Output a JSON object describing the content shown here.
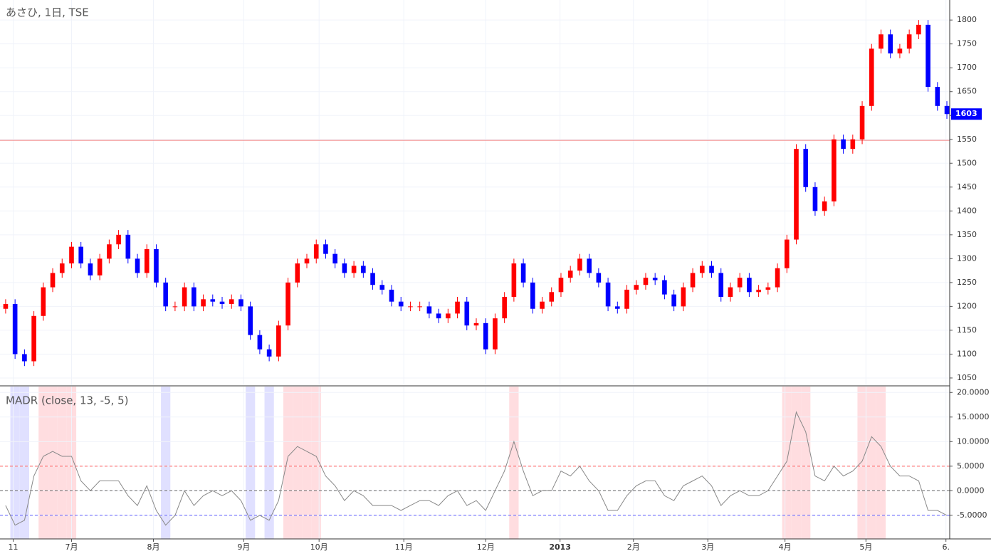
{
  "chart_data": [
    {
      "type": "candlestick",
      "title": "あさひ, 1日, TSE",
      "up_color": "#ff0000",
      "down_color": "#0000ff",
      "open": [
        1195,
        1205,
        1100,
        1085,
        1180,
        1240,
        1270,
        1290,
        1325,
        1290,
        1265,
        1300,
        1330,
        1350,
        1300,
        1270,
        1320,
        1250,
        1200,
        1200,
        1240,
        1200,
        1215,
        1210,
        1205,
        1215,
        1200,
        1140,
        1110,
        1095,
        1160,
        1250,
        1290,
        1300,
        1330,
        1310,
        1290,
        1270,
        1285,
        1270,
        1245,
        1235,
        1210,
        1200,
        1200,
        1200,
        1185,
        1175,
        1185,
        1210,
        1160,
        1165,
        1110,
        1175,
        1220,
        1290,
        1250,
        1195,
        1210,
        1230,
        1260,
        1275,
        1300,
        1270,
        1250,
        1200,
        1195,
        1235,
        1245,
        1260,
        1255,
        1225,
        1200,
        1240,
        1270,
        1285,
        1270,
        1220,
        1240,
        1260,
        1230,
        1235,
        1240,
        1280,
        1340,
        1530,
        1450,
        1400,
        1420,
        1550,
        1530,
        1550,
        1620,
        1740,
        1770,
        1730,
        1740,
        1770,
        1790,
        1660,
        1620
      ],
      "high": [
        1215,
        1215,
        1110,
        1190,
        1250,
        1280,
        1300,
        1335,
        1335,
        1300,
        1310,
        1340,
        1360,
        1360,
        1310,
        1330,
        1330,
        1260,
        1210,
        1250,
        1250,
        1225,
        1225,
        1220,
        1225,
        1225,
        1210,
        1150,
        1120,
        1170,
        1260,
        1300,
        1310,
        1340,
        1340,
        1320,
        1300,
        1295,
        1295,
        1280,
        1255,
        1245,
        1220,
        1210,
        1210,
        1210,
        1195,
        1195,
        1220,
        1220,
        1175,
        1175,
        1185,
        1230,
        1300,
        1300,
        1260,
        1220,
        1240,
        1270,
        1285,
        1310,
        1310,
        1280,
        1260,
        1210,
        1245,
        1255,
        1270,
        1270,
        1265,
        1235,
        1250,
        1280,
        1295,
        1295,
        1280,
        1250,
        1270,
        1270,
        1245,
        1250,
        1290,
        1350,
        1540,
        1540,
        1460,
        1430,
        1560,
        1560,
        1560,
        1630,
        1750,
        1780,
        1780,
        1750,
        1780,
        1800,
        1800,
        1670,
        1630
      ],
      "low": [
        1185,
        1090,
        1075,
        1075,
        1170,
        1230,
        1260,
        1280,
        1280,
        1255,
        1255,
        1290,
        1320,
        1290,
        1260,
        1260,
        1240,
        1190,
        1190,
        1190,
        1190,
        1190,
        1200,
        1195,
        1195,
        1190,
        1130,
        1100,
        1085,
        1085,
        1150,
        1240,
        1280,
        1290,
        1300,
        1280,
        1260,
        1260,
        1260,
        1235,
        1225,
        1200,
        1190,
        1190,
        1190,
        1175,
        1165,
        1165,
        1175,
        1150,
        1150,
        1100,
        1100,
        1165,
        1210,
        1240,
        1185,
        1185,
        1200,
        1220,
        1250,
        1265,
        1260,
        1240,
        1190,
        1185,
        1185,
        1225,
        1235,
        1245,
        1215,
        1190,
        1190,
        1230,
        1260,
        1260,
        1210,
        1210,
        1230,
        1220,
        1220,
        1225,
        1230,
        1270,
        1330,
        1440,
        1390,
        1390,
        1410,
        1520,
        1520,
        1540,
        1610,
        1730,
        1720,
        1720,
        1730,
        1760,
        1650,
        1610,
        1593
      ],
      "close": [
        1205,
        1100,
        1085,
        1180,
        1240,
        1270,
        1290,
        1325,
        1290,
        1265,
        1300,
        1330,
        1350,
        1300,
        1270,
        1320,
        1250,
        1200,
        1200,
        1240,
        1200,
        1215,
        1210,
        1205,
        1215,
        1200,
        1140,
        1110,
        1095,
        1160,
        1250,
        1290,
        1300,
        1330,
        1310,
        1290,
        1270,
        1285,
        1270,
        1245,
        1235,
        1210,
        1200,
        1200,
        1200,
        1185,
        1175,
        1185,
        1210,
        1160,
        1165,
        1110,
        1175,
        1220,
        1290,
        1250,
        1195,
        1210,
        1230,
        1260,
        1275,
        1300,
        1270,
        1250,
        1200,
        1195,
        1235,
        1245,
        1260,
        1255,
        1225,
        1200,
        1240,
        1270,
        1285,
        1270,
        1220,
        1240,
        1260,
        1230,
        1235,
        1240,
        1280,
        1340,
        1530,
        1450,
        1400,
        1420,
        1550,
        1530,
        1550,
        1620,
        1740,
        1770,
        1730,
        1740,
        1770,
        1790,
        1660,
        1620,
        1603
      ],
      "hline": {
        "value": 1548,
        "color": "#f08080"
      },
      "xlim": [
        -0.6,
        100.3
      ],
      "ylim": [
        1035,
        1842
      ],
      "yticks": [
        1050,
        1100,
        1150,
        1200,
        1250,
        1300,
        1350,
        1400,
        1450,
        1500,
        1550,
        1600,
        1650,
        1700,
        1750,
        1800
      ],
      "grid": true
    },
    {
      "type": "line",
      "title": "MADR (close, 13, -5, 5)",
      "series": [
        {
          "color": "#888888",
          "values": [
            -3,
            -7,
            -6,
            3,
            7,
            8,
            7,
            7,
            2,
            0,
            2,
            2,
            2,
            -1,
            -3,
            1,
            -4,
            -7,
            -5,
            0,
            -3,
            -1,
            0,
            -1,
            0,
            -2,
            -6,
            -5,
            -6,
            -2,
            7,
            9,
            8,
            7,
            3,
            1,
            -2,
            0,
            -1,
            -3,
            -3,
            -3,
            -4,
            -3,
            -2,
            -2,
            -3,
            -1,
            0,
            -3,
            -2,
            -4,
            0,
            4,
            10,
            4,
            -1,
            0,
            0,
            4,
            3,
            5,
            2,
            0,
            -4,
            -4,
            -1,
            1,
            2,
            2,
            -1,
            -2,
            1,
            2,
            3,
            1,
            -3,
            -1,
            0,
            -1,
            -1,
            0,
            3,
            6,
            16,
            12,
            3,
            2,
            5,
            3,
            4,
            6,
            11,
            9,
            5,
            3,
            3,
            2,
            -4,
            -4,
            -5
          ]
        }
      ],
      "levels": [
        {
          "value": 5,
          "color": "#ff6060",
          "band": "#ffdde0"
        },
        {
          "value": 0,
          "color": "#666666"
        },
        {
          "value": -5,
          "color": "#6060ff",
          "band": "#e0e0ff"
        }
      ],
      "xlim": [
        -0.6,
        100.3
      ],
      "ylim": [
        -9.8,
        21.2
      ],
      "yticks": [
        {
          "value": 20,
          "label": "20.0000"
        },
        {
          "value": 15,
          "label": "15.0000"
        },
        {
          "value": 10,
          "label": "10.0000"
        },
        {
          "value": 5,
          "label": "5.0000"
        },
        {
          "value": 0,
          "label": "0.0000"
        },
        {
          "value": -5,
          "label": "-5.0000"
        }
      ],
      "xticks": [
        {
          "value": 0.8,
          "label": "11"
        },
        {
          "value": 7,
          "label": "7月"
        },
        {
          "value": 15.7,
          "label": "8月"
        },
        {
          "value": 25.3,
          "label": "9月"
        },
        {
          "value": 33.3,
          "label": "10月"
        },
        {
          "value": 42.3,
          "label": "11月"
        },
        {
          "value": 51,
          "label": "12月"
        },
        {
          "value": 58.9,
          "label": "2013"
        },
        {
          "value": 66.7,
          "label": "2月"
        },
        {
          "value": 74.6,
          "label": "3月"
        },
        {
          "value": 82.8,
          "label": "4月"
        },
        {
          "value": 91.4,
          "label": "5月"
        },
        {
          "value": 99.9,
          "label": "6."
        }
      ],
      "grid": true
    }
  ]
}
